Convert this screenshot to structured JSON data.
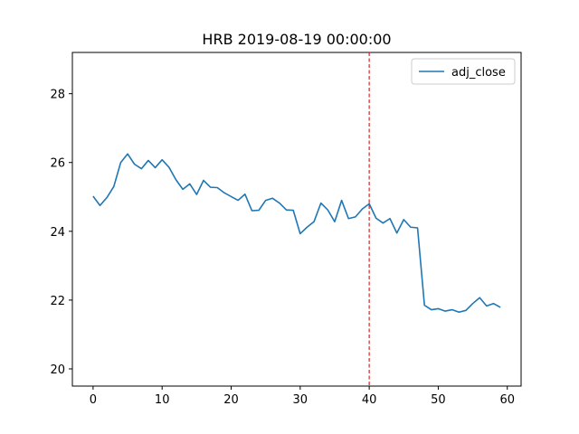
{
  "chart_data": {
    "type": "line",
    "title": "HRB 2019-08-19 00:00:00",
    "xlabel": "",
    "ylabel": "",
    "xlim": [
      -3,
      62
    ],
    "ylim": [
      19.5,
      29.2
    ],
    "xticks": [
      0,
      10,
      20,
      30,
      40,
      50,
      60
    ],
    "yticks": [
      20,
      22,
      24,
      26,
      28
    ],
    "grid": false,
    "legend_position": "top-right",
    "series": [
      {
        "name": "adj_close",
        "color": "#1f77b4",
        "x": [
          0,
          1,
          2,
          3,
          4,
          5,
          6,
          7,
          8,
          9,
          10,
          11,
          12,
          13,
          14,
          15,
          16,
          17,
          18,
          19,
          20,
          21,
          22,
          23,
          24,
          25,
          26,
          27,
          28,
          29,
          30,
          31,
          32,
          33,
          34,
          35,
          36,
          37,
          38,
          39,
          40,
          41,
          42,
          43,
          44,
          45,
          46,
          47,
          48,
          49,
          50,
          51,
          52,
          53,
          54,
          55,
          56,
          57,
          58,
          59
        ],
        "values": [
          25.02,
          24.75,
          24.98,
          25.3,
          26.0,
          26.25,
          25.95,
          25.82,
          26.06,
          25.85,
          26.08,
          25.86,
          25.5,
          25.22,
          25.38,
          25.07,
          25.48,
          25.28,
          25.27,
          25.12,
          25.01,
          24.9,
          25.08,
          24.6,
          24.61,
          24.9,
          24.96,
          24.82,
          24.62,
          24.61,
          23.93,
          24.12,
          24.28,
          24.82,
          24.62,
          24.28,
          24.9,
          24.37,
          24.42,
          24.65,
          24.8,
          24.38,
          24.24,
          24.37,
          23.95,
          24.34,
          24.12,
          24.1,
          21.85,
          21.72,
          21.75,
          21.68,
          21.72,
          21.65,
          21.7,
          21.9,
          22.07,
          21.83,
          21.9,
          21.79
        ]
      }
    ],
    "vline": {
      "x": 40,
      "color": "#d62728",
      "style": "dashed"
    }
  }
}
